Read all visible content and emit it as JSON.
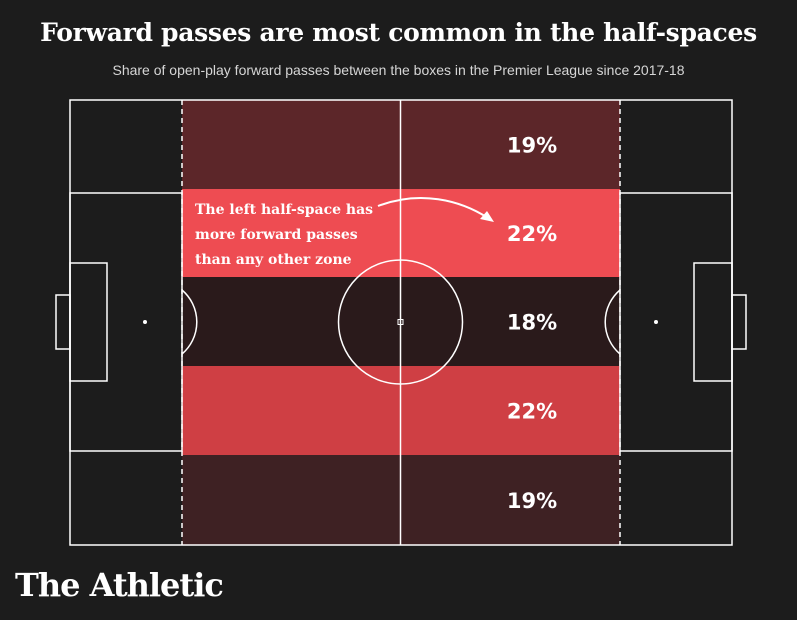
{
  "header": {
    "title": "Forward passes are most common in the half-spaces",
    "subtitle": "Share of open-play forward passes between the boxes in the Premier League since 2017-18"
  },
  "chart_data": {
    "type": "heatmap",
    "title": "Forward passes are most common in the half-spaces",
    "subtitle": "Share of open-play forward passes between the boxes in the Premier League since 2017-18",
    "zones": [
      {
        "label": "19%",
        "value": 19,
        "color": "#5c2629"
      },
      {
        "label": "22%",
        "value": 22,
        "color": "#ee4c52"
      },
      {
        "label": "18%",
        "value": 18,
        "color": "#2a1a1b"
      },
      {
        "label": "22%",
        "value": 22,
        "color": "#cf3f44"
      },
      {
        "label": "19%",
        "value": 19,
        "color": "#3e2123"
      }
    ],
    "annotation": {
      "lines": [
        "The left half-space has",
        "more forward passes",
        "than any other zone"
      ]
    }
  },
  "colors": {
    "background": "#1c1c1c",
    "pitch_lines": "#ffffff"
  },
  "brand": {
    "logo_text": "The Athletic"
  }
}
